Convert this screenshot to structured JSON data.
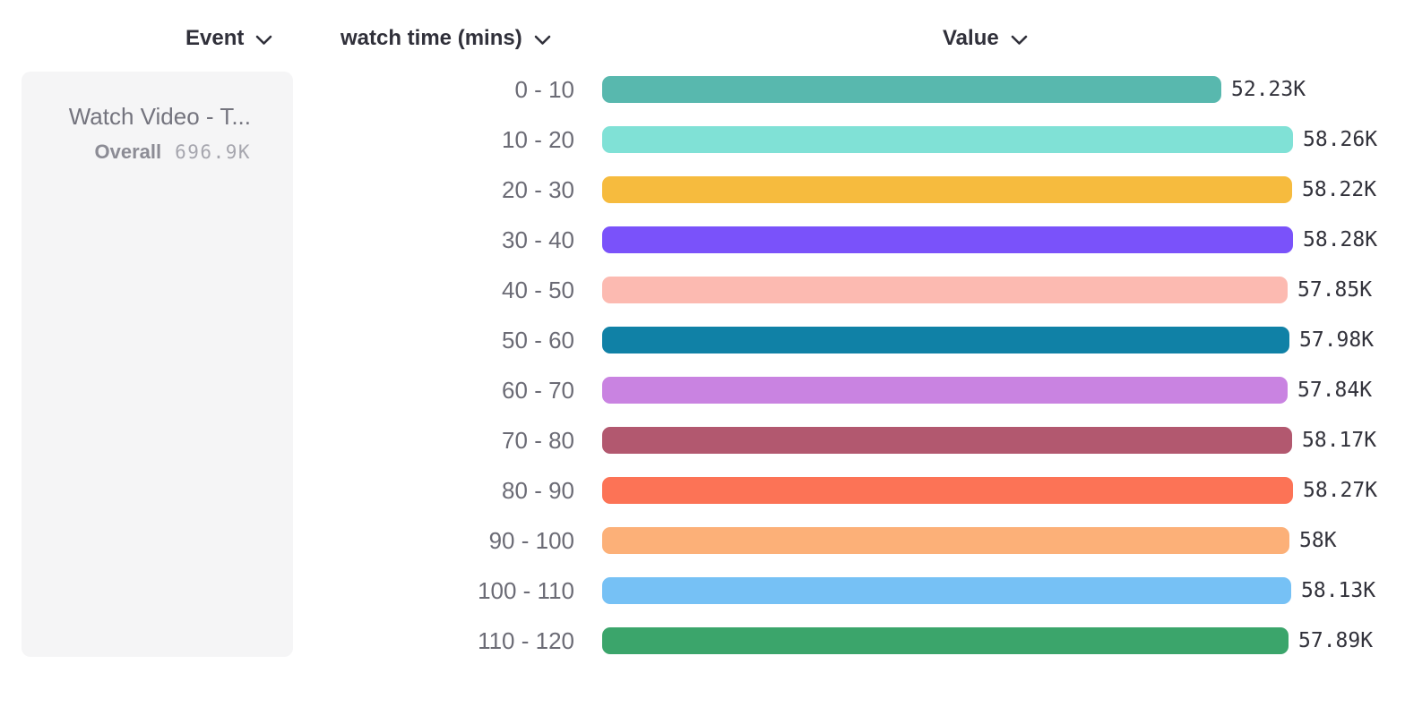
{
  "header": {
    "columns": [
      {
        "label": "Event"
      },
      {
        "label": "watch time (mins)"
      },
      {
        "label": "Value"
      }
    ]
  },
  "event_card": {
    "title": "Watch Video - T...",
    "overall_label": "Overall",
    "overall_value": "696.9K"
  },
  "icons": {
    "chevron_down": "chevron-down-icon"
  },
  "colors": {
    "background": "#ffffff",
    "card_background": "#f5f5f6",
    "header_text": "#30303a",
    "bucket_label_text": "#6b6b75",
    "value_label_text": "#32323b",
    "card_title_text": "#74747e",
    "overall_label_text": "#8c8c95",
    "overall_value_text": "#a6a6ae"
  },
  "chart_data": {
    "type": "bar",
    "orientation": "horizontal",
    "title": "",
    "xlabel": "Value",
    "ylabel": "watch time (mins)",
    "grid": false,
    "legend": false,
    "value_axis_max": 58280,
    "categories": [
      "0 - 10",
      "10 - 20",
      "20 - 30",
      "30 - 40",
      "40 - 50",
      "50 - 60",
      "60 - 70",
      "70 - 80",
      "80 - 90",
      "90 - 100",
      "100 - 110",
      "110 - 120"
    ],
    "values": [
      52230,
      58260,
      58220,
      58280,
      57850,
      57980,
      57840,
      58170,
      58270,
      58000,
      58130,
      57890
    ],
    "value_labels": [
      "52.23K",
      "58.26K",
      "58.22K",
      "58.28K",
      "57.85K",
      "57.98K",
      "57.84K",
      "58.17K",
      "58.27K",
      "58K",
      "58.13K",
      "57.89K"
    ],
    "bar_colors": [
      "#58b8ae",
      "#80e1d6",
      "#f6bb3e",
      "#7a52fa",
      "#fcbab1",
      "#1081a6",
      "#c983e1",
      "#b2586f",
      "#fc7356",
      "#fcb078",
      "#76c1f5",
      "#3ba56b"
    ]
  }
}
